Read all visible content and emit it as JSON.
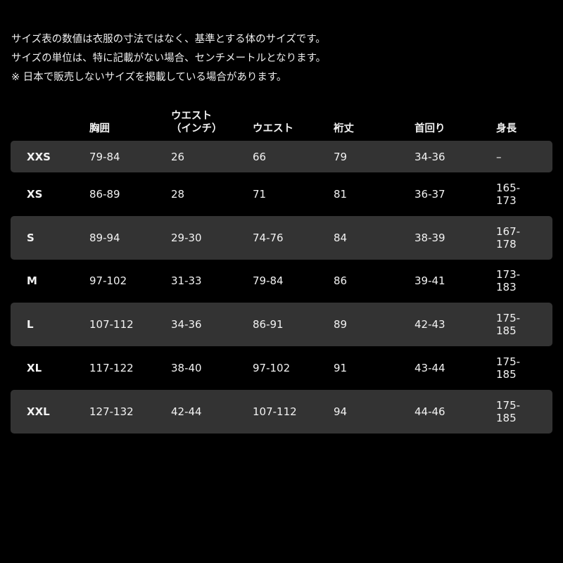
{
  "notes": [
    "サイズ表の数値は衣服の寸法ではなく、基準とする体のサイズです。",
    "サイズの単位は、特に記載がない場合、センチメートルとなります。",
    "※ 日本で販売しないサイズを掲載している場合があります。"
  ],
  "table": {
    "headers": [
      "",
      "胸囲",
      "ウエスト\n（インチ）",
      "ウエスト",
      "裄丈",
      "首回り",
      "身長"
    ],
    "rows": [
      {
        "size": "XXS",
        "chest": "79-84",
        "waist_in": "26",
        "waist": "66",
        "sleeve": "79",
        "neck": "34-36",
        "height": "–"
      },
      {
        "size": "XS",
        "chest": "86-89",
        "waist_in": "28",
        "waist": "71",
        "sleeve": "81",
        "neck": "36-37",
        "height": "165-\n173"
      },
      {
        "size": "S",
        "chest": "89-94",
        "waist_in": "29-30",
        "waist": "74-76",
        "sleeve": "84",
        "neck": "38-39",
        "height": "167-\n178"
      },
      {
        "size": "M",
        "chest": "97-102",
        "waist_in": "31-33",
        "waist": "79-84",
        "sleeve": "86",
        "neck": "39-41",
        "height": "173-\n183"
      },
      {
        "size": "L",
        "chest": "107-112",
        "waist_in": "34-36",
        "waist": "86-91",
        "sleeve": "89",
        "neck": "42-43",
        "height": "175-\n185"
      },
      {
        "size": "XL",
        "chest": "117-122",
        "waist_in": "38-40",
        "waist": "97-102",
        "sleeve": "91",
        "neck": "43-44",
        "height": "175-\n185"
      },
      {
        "size": "XXL",
        "chest": "127-132",
        "waist_in": "42-44",
        "waist": "107-112",
        "sleeve": "94",
        "neck": "44-46",
        "height": "175-\n185"
      }
    ],
    "row_shade_color": "#333333"
  }
}
